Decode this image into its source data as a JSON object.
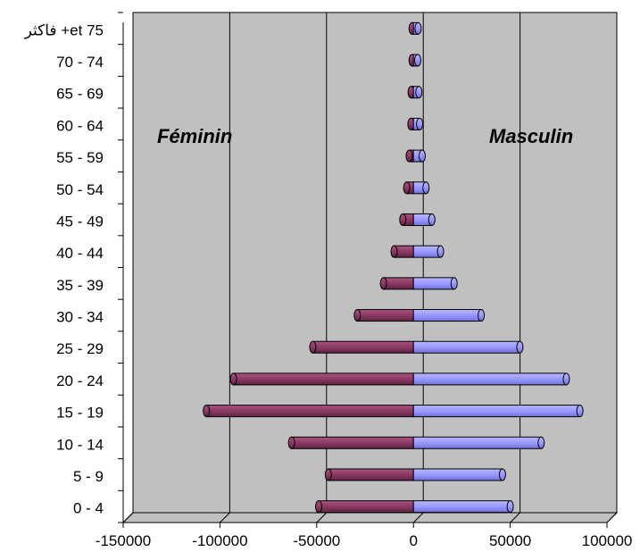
{
  "chart_data": {
    "type": "bar",
    "orientation": "horizontal",
    "style": "3d-cylinder-population-pyramid",
    "categories": [
      "0 - 4",
      "5 - 9",
      "10 - 14",
      "15 - 19",
      "20 - 24",
      "25 - 29",
      "30 - 34",
      "35 - 39",
      "40 - 44",
      "45 - 49",
      "50 - 54",
      "55 - 59",
      "60 - 64",
      "65 - 69",
      "70 - 74",
      "فاكثر +et 75"
    ],
    "series": [
      {
        "name": "",
        "color": "#8b3a62",
        "values": [
          -49000,
          -44000,
          -63000,
          -107000,
          -93000,
          -52000,
          -29000,
          -15500,
          -10000,
          -5500,
          -3500,
          -2200,
          -1300,
          -1200,
          -700,
          -700
        ]
      },
      {
        "name": "",
        "color": "#9999ff",
        "values": [
          50000,
          46000,
          66000,
          86000,
          79000,
          55000,
          35000,
          21000,
          14000,
          9500,
          6500,
          4500,
          3200,
          2800,
          2200,
          2400
        ]
      }
    ],
    "xlim": [
      -150000,
      100000
    ],
    "xticks": [
      -150000,
      -100000,
      -50000,
      0,
      50000,
      100000
    ],
    "xtick_labels": [
      "-150000",
      "-100000",
      "-50000",
      "0",
      "50000",
      "100000"
    ],
    "annotations": {
      "left": "Féminin",
      "right": "Masculin"
    },
    "grid": true,
    "title": "",
    "xlabel": "",
    "ylabel": ""
  }
}
